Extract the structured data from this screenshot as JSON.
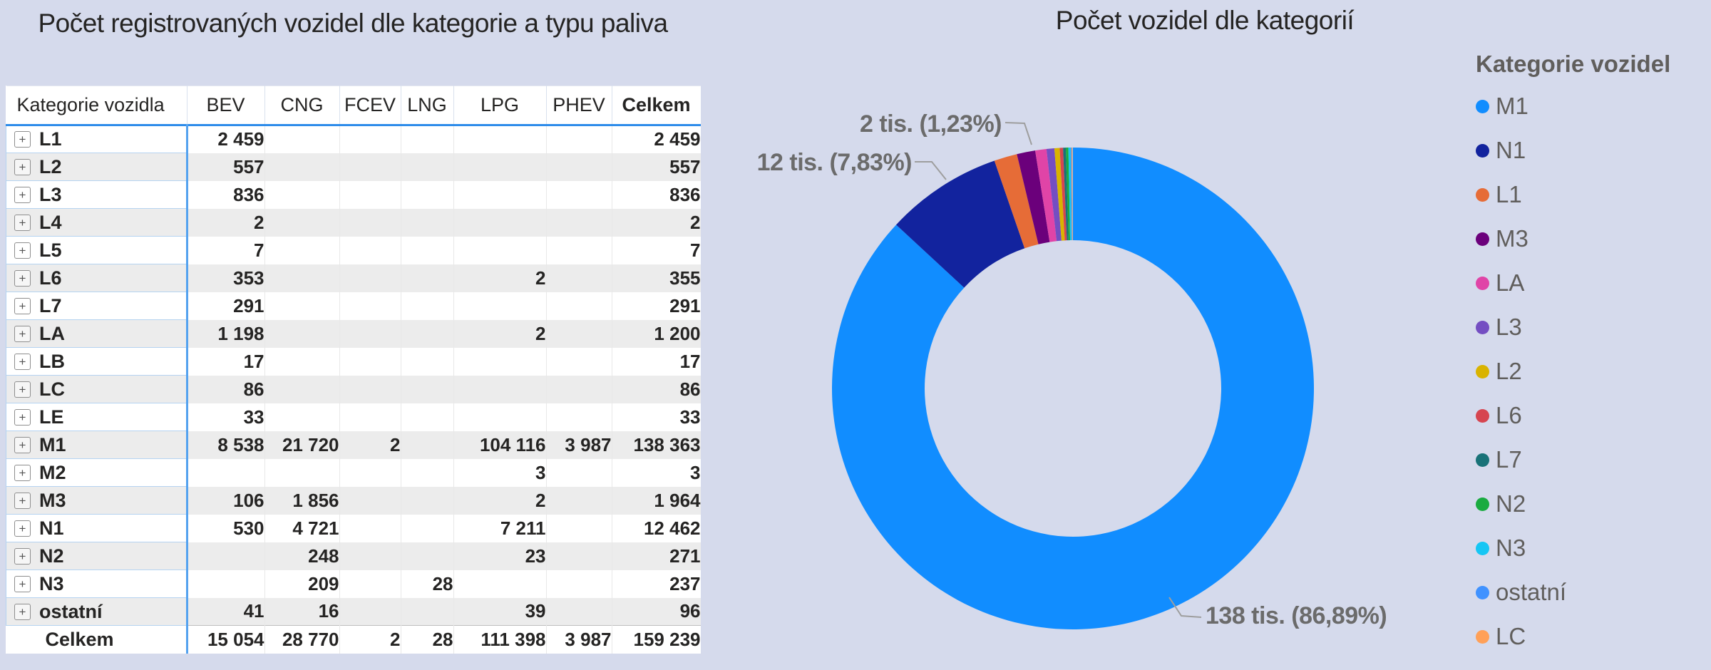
{
  "left_visual": {
    "title": "Počet registrovaných vozidel dle kategorie a typu paliva",
    "table": {
      "columns": [
        "Kategorie vozidla",
        "BEV",
        "CNG",
        "FCEV",
        "LNG",
        "LPG",
        "PHEV",
        "Celkem"
      ],
      "rows": [
        {
          "category": "L1",
          "values": [
            "2 459",
            "",
            "",
            "",
            "",
            "",
            "2 459"
          ]
        },
        {
          "category": "L2",
          "values": [
            "557",
            "",
            "",
            "",
            "",
            "",
            "557"
          ]
        },
        {
          "category": "L3",
          "values": [
            "836",
            "",
            "",
            "",
            "",
            "",
            "836"
          ]
        },
        {
          "category": "L4",
          "values": [
            "2",
            "",
            "",
            "",
            "",
            "",
            "2"
          ]
        },
        {
          "category": "L5",
          "values": [
            "7",
            "",
            "",
            "",
            "",
            "",
            "7"
          ]
        },
        {
          "category": "L6",
          "values": [
            "353",
            "",
            "",
            "",
            "2",
            "",
            "355"
          ]
        },
        {
          "category": "L7",
          "values": [
            "291",
            "",
            "",
            "",
            "",
            "",
            "291"
          ]
        },
        {
          "category": "LA",
          "values": [
            "1 198",
            "",
            "",
            "",
            "2",
            "",
            "1 200"
          ]
        },
        {
          "category": "LB",
          "values": [
            "17",
            "",
            "",
            "",
            "",
            "",
            "17"
          ]
        },
        {
          "category": "LC",
          "values": [
            "86",
            "",
            "",
            "",
            "",
            "",
            "86"
          ]
        },
        {
          "category": "LE",
          "values": [
            "33",
            "",
            "",
            "",
            "",
            "",
            "33"
          ]
        },
        {
          "category": "M1",
          "values": [
            "8 538",
            "21 720",
            "2",
            "",
            "104 116",
            "3 987",
            "138 363"
          ]
        },
        {
          "category": "M2",
          "values": [
            "",
            "",
            "",
            "",
            "3",
            "",
            "3"
          ]
        },
        {
          "category": "M3",
          "values": [
            "106",
            "1 856",
            "",
            "",
            "2",
            "",
            "1 964"
          ]
        },
        {
          "category": "N1",
          "values": [
            "530",
            "4 721",
            "",
            "",
            "7 211",
            "",
            "12 462"
          ]
        },
        {
          "category": "N2",
          "values": [
            "",
            "248",
            "",
            "",
            "23",
            "",
            "271"
          ]
        },
        {
          "category": "N3",
          "values": [
            "",
            "209",
            "",
            "28",
            "",
            "",
            "237"
          ]
        },
        {
          "category": "ostatní",
          "values": [
            "41",
            "16",
            "",
            "",
            "39",
            "",
            "96"
          ]
        }
      ],
      "total_row": {
        "category": "Celkem",
        "values": [
          "15 054",
          "28 770",
          "2",
          "28",
          "111 398",
          "3 987",
          "159 239"
        ]
      }
    }
  },
  "chart_data": {
    "type": "pie",
    "donut": true,
    "title": "Počet vozidel dle kategorií",
    "categories": [
      "M1",
      "N1",
      "L1",
      "M3",
      "LA",
      "L3",
      "L2",
      "L6",
      "L7",
      "N2",
      "N3",
      "ostatní",
      "LC",
      "LE",
      "LB",
      "L5",
      "M2",
      "L4"
    ],
    "values": [
      138363,
      12462,
      2459,
      1964,
      1200,
      836,
      557,
      355,
      291,
      271,
      237,
      96,
      86,
      33,
      17,
      7,
      3,
      2
    ],
    "colors": [
      "#118DFF",
      "#12239E",
      "#E66C37",
      "#6B007B",
      "#E044A7",
      "#744EC2",
      "#D9B300",
      "#D64550",
      "#197278",
      "#1AAB40",
      "#15C6F4",
      "#4092FF",
      "#FFA058",
      "#B0B0B0",
      "#B0B0B0",
      "#B0B0B0",
      "#B0B0B0",
      "#B0B0B0"
    ],
    "total": 159239,
    "legend_position": "right",
    "legend_title": "Kategorie vozidel",
    "legend_visible_items": [
      "M1",
      "N1",
      "L1",
      "M3",
      "LA",
      "L3",
      "L2",
      "L6",
      "L7",
      "N2",
      "N3",
      "ostatní",
      "LC"
    ],
    "callouts": [
      {
        "category": "M1",
        "text": "138 tis. (86,89%)"
      },
      {
        "category": "N1",
        "text": "12 tis. (7,83%)"
      },
      {
        "category": "M3",
        "text": "2 tis. (1,23%)"
      }
    ]
  }
}
